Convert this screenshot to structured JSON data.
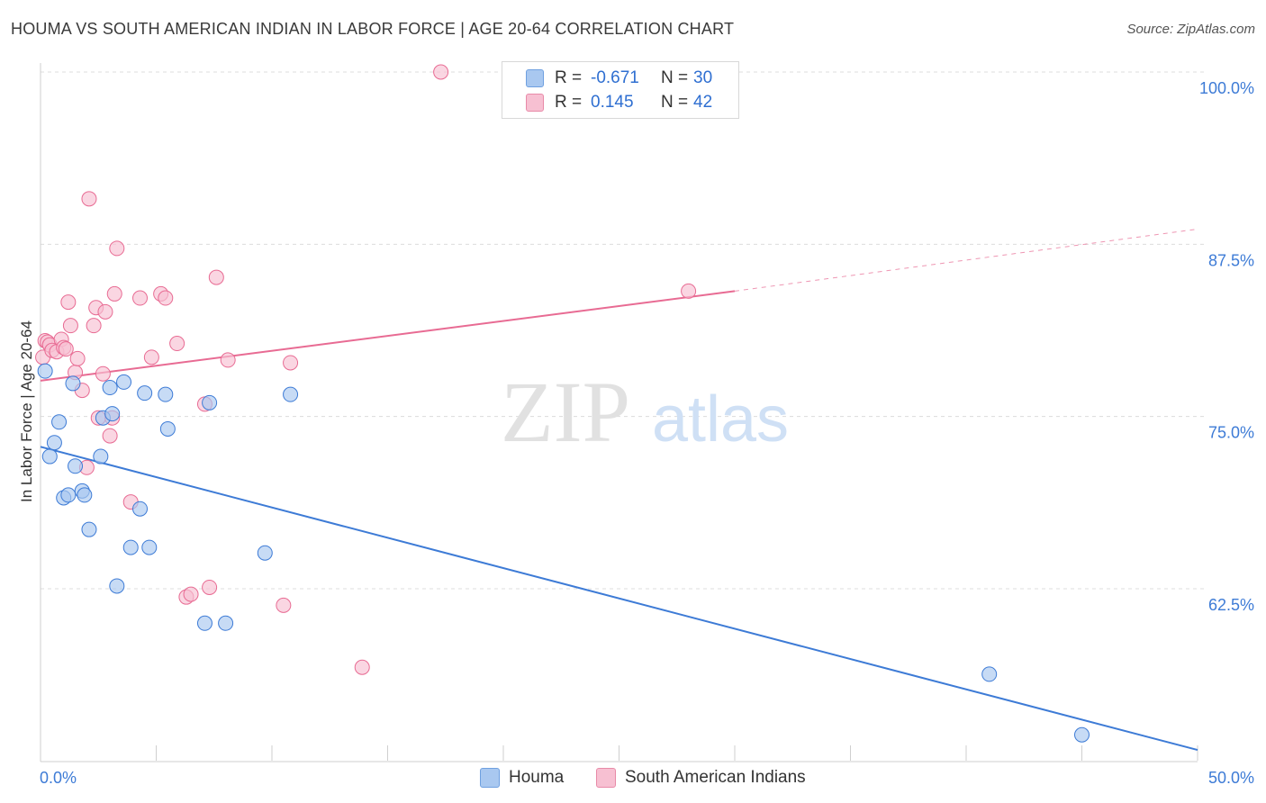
{
  "header": {
    "title": "HOUMA VS SOUTH AMERICAN INDIAN IN LABOR FORCE | AGE 20-64 CORRELATION CHART",
    "source": "Source: ZipAtlas.com"
  },
  "watermark": {
    "zip": "ZIP",
    "atlas": "atlas"
  },
  "legend": {
    "rows": [
      {
        "r_label": "R =",
        "r_value": "-0.671",
        "n_label": "N =",
        "n_value": "30",
        "color": "#a9c8f0",
        "border": "#6fa0e0"
      },
      {
        "r_label": "R =",
        "r_value": "0.145",
        "n_label": "N =",
        "n_value": "42",
        "color": "#f7c0d2",
        "border": "#e88aa8"
      }
    ]
  },
  "bottom_legend": {
    "items": [
      {
        "label": "Houma",
        "color": "#a9c8f0",
        "border": "#6fa0e0"
      },
      {
        "label": "South American Indians",
        "color": "#f7c0d2",
        "border": "#e88aa8"
      }
    ]
  },
  "chart_data": {
    "type": "scatter",
    "title": "HOUMA VS SOUTH AMERICAN INDIAN IN LABOR FORCE | AGE 20-64 CORRELATION CHART",
    "xlabel": "",
    "ylabel": "In Labor Force | Age 20-64",
    "xlim": [
      0,
      50
    ],
    "ylim": [
      52,
      101
    ],
    "x_tick_labels": [
      "0.0%",
      "50.0%"
    ],
    "y_ticks": [
      62.5,
      75.0,
      87.5,
      100.0
    ],
    "y_tick_labels": [
      "62.5%",
      "75.0%",
      "87.5%",
      "100.0%"
    ],
    "grid": "horizontal dashed",
    "series": [
      {
        "name": "Houma",
        "color": "#3d7bd6",
        "fill": "#a9c8f0",
        "points": [
          [
            0.2,
            78.3
          ],
          [
            0.4,
            72.1
          ],
          [
            0.6,
            73.1
          ],
          [
            0.8,
            74.6
          ],
          [
            1.0,
            69.1
          ],
          [
            1.2,
            69.3
          ],
          [
            1.4,
            77.4
          ],
          [
            1.5,
            71.4
          ],
          [
            1.8,
            69.6
          ],
          [
            1.9,
            69.3
          ],
          [
            2.1,
            66.8
          ],
          [
            2.6,
            72.1
          ],
          [
            2.7,
            74.9
          ],
          [
            3.0,
            77.1
          ],
          [
            3.1,
            75.2
          ],
          [
            3.3,
            62.7
          ],
          [
            3.6,
            77.5
          ],
          [
            3.9,
            65.5
          ],
          [
            4.3,
            68.3
          ],
          [
            4.5,
            76.7
          ],
          [
            4.7,
            65.5
          ],
          [
            5.4,
            76.6
          ],
          [
            5.5,
            74.1
          ],
          [
            7.1,
            60.0
          ],
          [
            7.3,
            76.0
          ],
          [
            8.0,
            60.0
          ],
          [
            9.7,
            65.1
          ],
          [
            10.8,
            76.6
          ],
          [
            41.0,
            56.3
          ],
          [
            45.0,
            51.9
          ]
        ],
        "trend": {
          "x": [
            0,
            50
          ],
          "y": [
            72.8,
            50.8
          ]
        }
      },
      {
        "name": "South American Indians",
        "color": "#e86b93",
        "fill": "#f7c0d2",
        "points": [
          [
            0.1,
            79.3
          ],
          [
            0.2,
            80.5
          ],
          [
            0.3,
            80.4
          ],
          [
            0.4,
            80.2
          ],
          [
            0.5,
            79.8
          ],
          [
            0.7,
            79.7
          ],
          [
            0.9,
            80.6
          ],
          [
            1.0,
            80.0
          ],
          [
            1.1,
            79.9
          ],
          [
            1.2,
            83.3
          ],
          [
            1.3,
            81.6
          ],
          [
            1.5,
            78.2
          ],
          [
            1.6,
            79.2
          ],
          [
            1.8,
            76.9
          ],
          [
            2.0,
            71.3
          ],
          [
            2.1,
            90.8
          ],
          [
            2.3,
            81.6
          ],
          [
            2.4,
            82.9
          ],
          [
            2.5,
            74.9
          ],
          [
            2.7,
            78.1
          ],
          [
            2.8,
            82.6
          ],
          [
            3.0,
            73.6
          ],
          [
            3.1,
            74.9
          ],
          [
            3.2,
            83.9
          ],
          [
            3.3,
            87.2
          ],
          [
            3.9,
            68.8
          ],
          [
            4.3,
            83.6
          ],
          [
            4.8,
            79.3
          ],
          [
            5.2,
            83.9
          ],
          [
            5.4,
            83.6
          ],
          [
            5.9,
            80.3
          ],
          [
            6.3,
            61.9
          ],
          [
            6.5,
            62.1
          ],
          [
            7.1,
            75.9
          ],
          [
            7.3,
            62.6
          ],
          [
            7.6,
            85.1
          ],
          [
            8.1,
            79.1
          ],
          [
            10.5,
            61.3
          ],
          [
            10.8,
            78.9
          ],
          [
            13.9,
            56.8
          ],
          [
            17.3,
            100.0
          ],
          [
            28.0,
            84.1
          ]
        ],
        "trend_solid": {
          "x": [
            0,
            30
          ],
          "y": [
            77.6,
            84.1
          ]
        },
        "trend_dashed": {
          "x": [
            30,
            50
          ],
          "y": [
            84.1,
            88.6
          ]
        }
      }
    ]
  }
}
